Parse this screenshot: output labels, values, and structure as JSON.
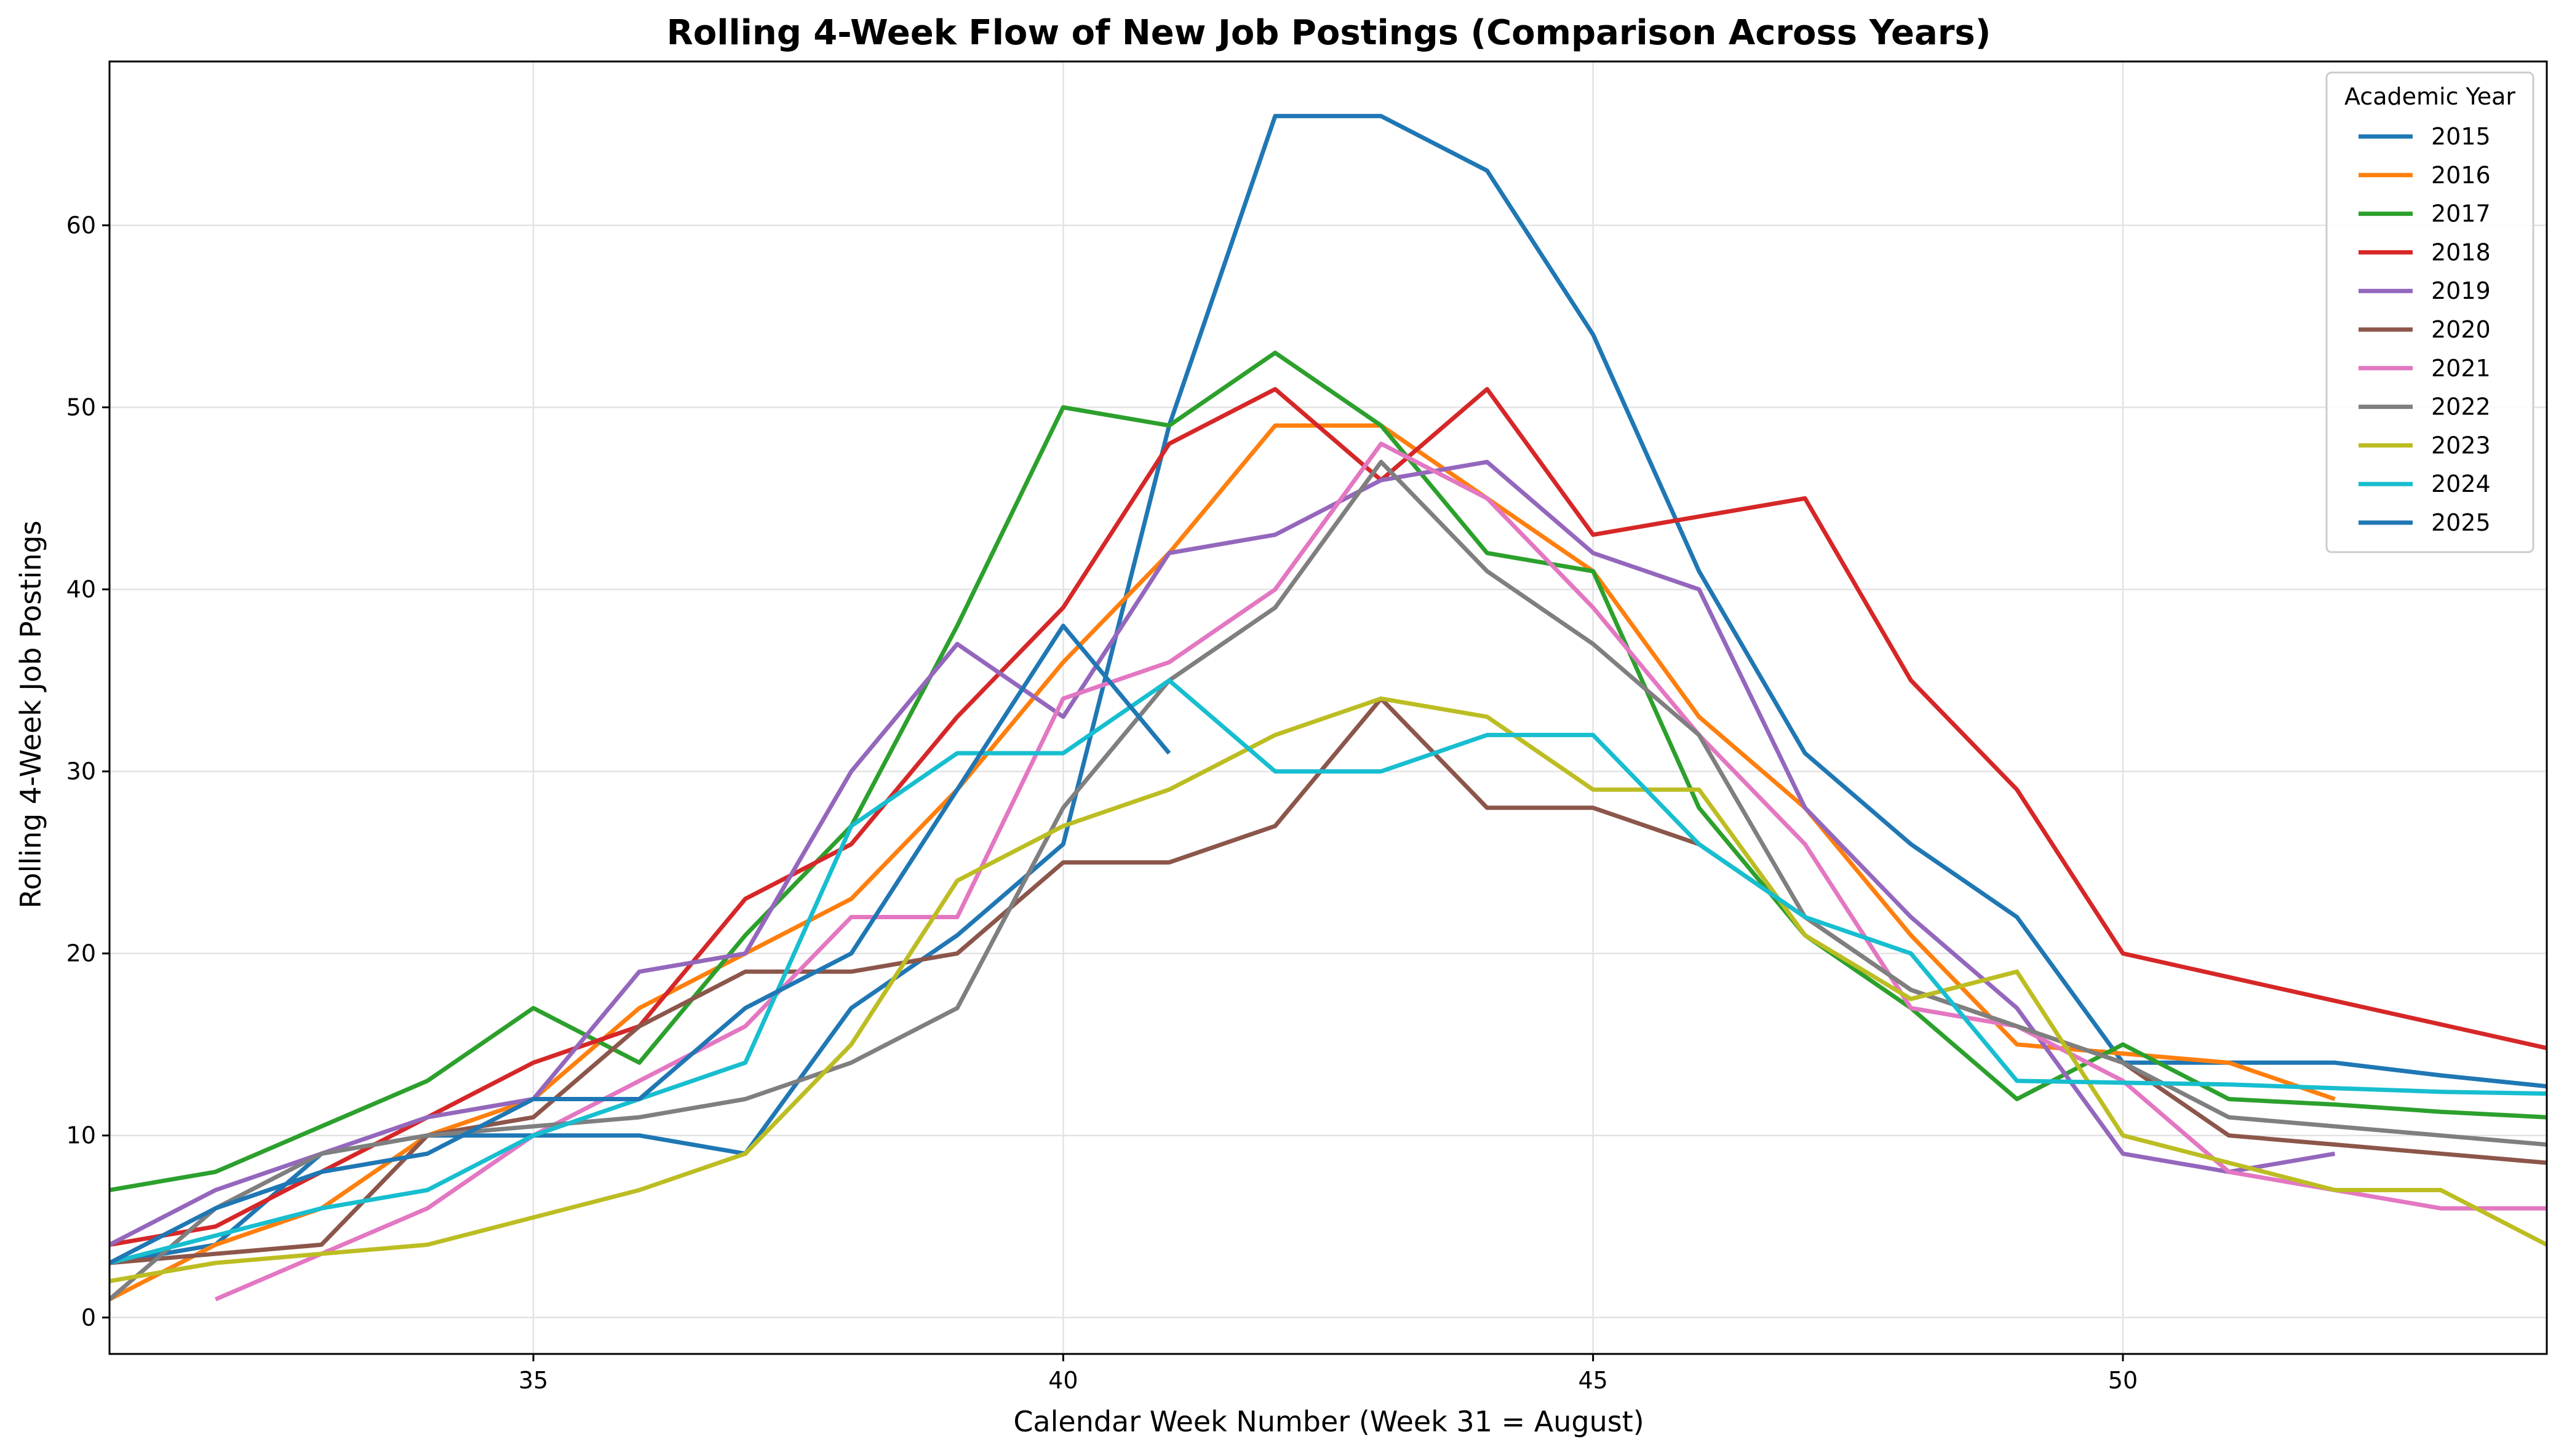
{
  "chart_data": {
    "type": "line",
    "title": "Rolling 4-Week Flow of New Job Postings (Comparison Across Years)",
    "xlabel": "Calendar Week Number (Week 31 = August)",
    "ylabel": "Rolling 4-Week Job Postings",
    "xlim": [
      31,
      54
    ],
    "ylim": [
      -2,
      69
    ],
    "xticks": [
      35,
      40,
      45,
      50
    ],
    "yticks": [
      0,
      10,
      20,
      30,
      40,
      50,
      60
    ],
    "grid": true,
    "legend": {
      "title": "Academic Year",
      "placement": "top-right"
    },
    "series": [
      {
        "name": "2015",
        "color": "#1f77b4",
        "x": [
          31,
          32,
          33,
          34,
          35,
          36,
          37,
          38,
          39,
          40,
          41,
          42,
          43,
          44,
          45,
          46,
          47,
          48,
          49,
          50,
          51,
          52,
          53,
          54
        ],
        "y": [
          3,
          4,
          9,
          10,
          10,
          10,
          9,
          17,
          21,
          26,
          49,
          66,
          66,
          63,
          54,
          41,
          31,
          26,
          22,
          14,
          14,
          14,
          13.3,
          12.7
        ]
      },
      {
        "name": "2016",
        "color": "#ff7f0e",
        "x": [
          31,
          32,
          33,
          34,
          35,
          36,
          37,
          38,
          39,
          40,
          41,
          42,
          43,
          44,
          45,
          46,
          47,
          48,
          49,
          50,
          51,
          52
        ],
        "y": [
          1,
          4,
          6,
          10,
          12,
          17,
          20,
          23,
          29,
          36,
          42,
          49,
          49,
          45,
          41,
          33,
          28,
          21,
          15,
          14.5,
          14,
          12
        ]
      },
      {
        "name": "2017",
        "color": "#2ca02c",
        "x": [
          31,
          32,
          33,
          34,
          35,
          36,
          37,
          38,
          39,
          40,
          41,
          42,
          43,
          44,
          45,
          46,
          47,
          48,
          49,
          50,
          51,
          52,
          53,
          54
        ],
        "y": [
          7,
          8,
          10.5,
          13,
          17,
          14,
          21,
          27,
          38,
          50,
          49,
          53,
          49,
          42,
          41,
          28,
          21,
          17,
          12,
          15,
          12,
          11.7,
          11.3,
          11
        ]
      },
      {
        "name": "2018",
        "color": "#d62728",
        "x": [
          31,
          32,
          33,
          34,
          35,
          36,
          37,
          38,
          39,
          40,
          41,
          42,
          43,
          44,
          45,
          46,
          47,
          48,
          49,
          50,
          51,
          52,
          53,
          54
        ],
        "y": [
          4,
          5,
          8,
          11,
          14,
          16,
          23,
          26,
          33,
          39,
          48,
          51,
          46,
          51,
          43,
          44,
          45,
          35,
          29,
          20,
          18.7,
          17.4,
          16.1,
          14.8
        ]
      },
      {
        "name": "2019",
        "color": "#9467bd",
        "x": [
          31,
          32,
          33,
          34,
          35,
          36,
          37,
          38,
          39,
          40,
          41,
          42,
          43,
          44,
          45,
          46,
          47,
          48,
          49,
          50,
          51,
          52
        ],
        "y": [
          4,
          7,
          9,
          11,
          12,
          19,
          20,
          30,
          37,
          33,
          42,
          43,
          46,
          47,
          42,
          40,
          28,
          22,
          17,
          9,
          8,
          9
        ]
      },
      {
        "name": "2020",
        "color": "#8c564b",
        "x": [
          31,
          32,
          33,
          34,
          35,
          36,
          37,
          38,
          39,
          40,
          41,
          42,
          43,
          44,
          45,
          46,
          47,
          48,
          49,
          50,
          51,
          52,
          53,
          54
        ],
        "y": [
          3,
          3.5,
          4,
          10,
          11,
          16,
          19,
          19,
          20,
          25,
          25,
          27,
          34,
          28,
          28,
          26,
          22,
          18,
          16,
          14,
          10,
          9.5,
          9,
          8.5
        ]
      },
      {
        "name": "2021",
        "color": "#e377c2",
        "x": [
          32,
          33,
          34,
          35,
          36,
          37,
          38,
          39,
          40,
          41,
          42,
          43,
          44,
          45,
          46,
          47,
          48,
          49,
          50,
          51,
          52,
          53,
          54
        ],
        "y": [
          1,
          3.5,
          6,
          10,
          13,
          16,
          22,
          22,
          34,
          36,
          40,
          48,
          45,
          39,
          32,
          26,
          17,
          16,
          13,
          8,
          7,
          6,
          6
        ]
      },
      {
        "name": "2022",
        "color": "#7f7f7f",
        "x": [
          31,
          32,
          33,
          34,
          35,
          36,
          37,
          38,
          39,
          40,
          41,
          42,
          43,
          44,
          45,
          46,
          47,
          48,
          49,
          50,
          51,
          52,
          53,
          54
        ],
        "y": [
          1,
          6,
          9,
          10,
          10.5,
          11,
          12,
          14,
          17,
          28,
          35,
          39,
          47,
          41,
          37,
          32,
          22,
          18,
          16,
          14,
          11,
          10.5,
          10,
          9.5
        ]
      },
      {
        "name": "2023",
        "color": "#bcbd22",
        "x": [
          31,
          32,
          33,
          34,
          35,
          36,
          37,
          38,
          39,
          40,
          41,
          42,
          43,
          44,
          45,
          46,
          47,
          48,
          49,
          50,
          51,
          52,
          53,
          54
        ],
        "y": [
          2,
          3,
          3.5,
          4,
          5.5,
          7,
          9,
          15,
          24,
          27,
          29,
          32,
          34,
          33,
          29,
          29,
          21,
          17.5,
          19,
          10,
          8.5,
          7,
          7,
          4
        ]
      },
      {
        "name": "2024",
        "color": "#17becf",
        "x": [
          31,
          32,
          33,
          34,
          35,
          36,
          37,
          38,
          39,
          40,
          41,
          42,
          43,
          44,
          45,
          46,
          47,
          48,
          49,
          50,
          51,
          52,
          53,
          54
        ],
        "y": [
          3,
          4.5,
          6,
          7,
          10,
          12,
          14,
          27,
          31,
          31,
          35,
          30,
          30,
          32,
          32,
          26,
          22,
          20,
          13,
          12.9,
          12.8,
          12.6,
          12.4,
          12.3
        ]
      },
      {
        "name": "2025",
        "color": "#1f77b4",
        "x": [
          31,
          32,
          33,
          34,
          35,
          36,
          37,
          38,
          39,
          40,
          41
        ],
        "y": [
          3,
          6,
          8,
          9,
          12,
          12,
          17,
          20,
          29,
          38,
          31
        ]
      }
    ]
  }
}
